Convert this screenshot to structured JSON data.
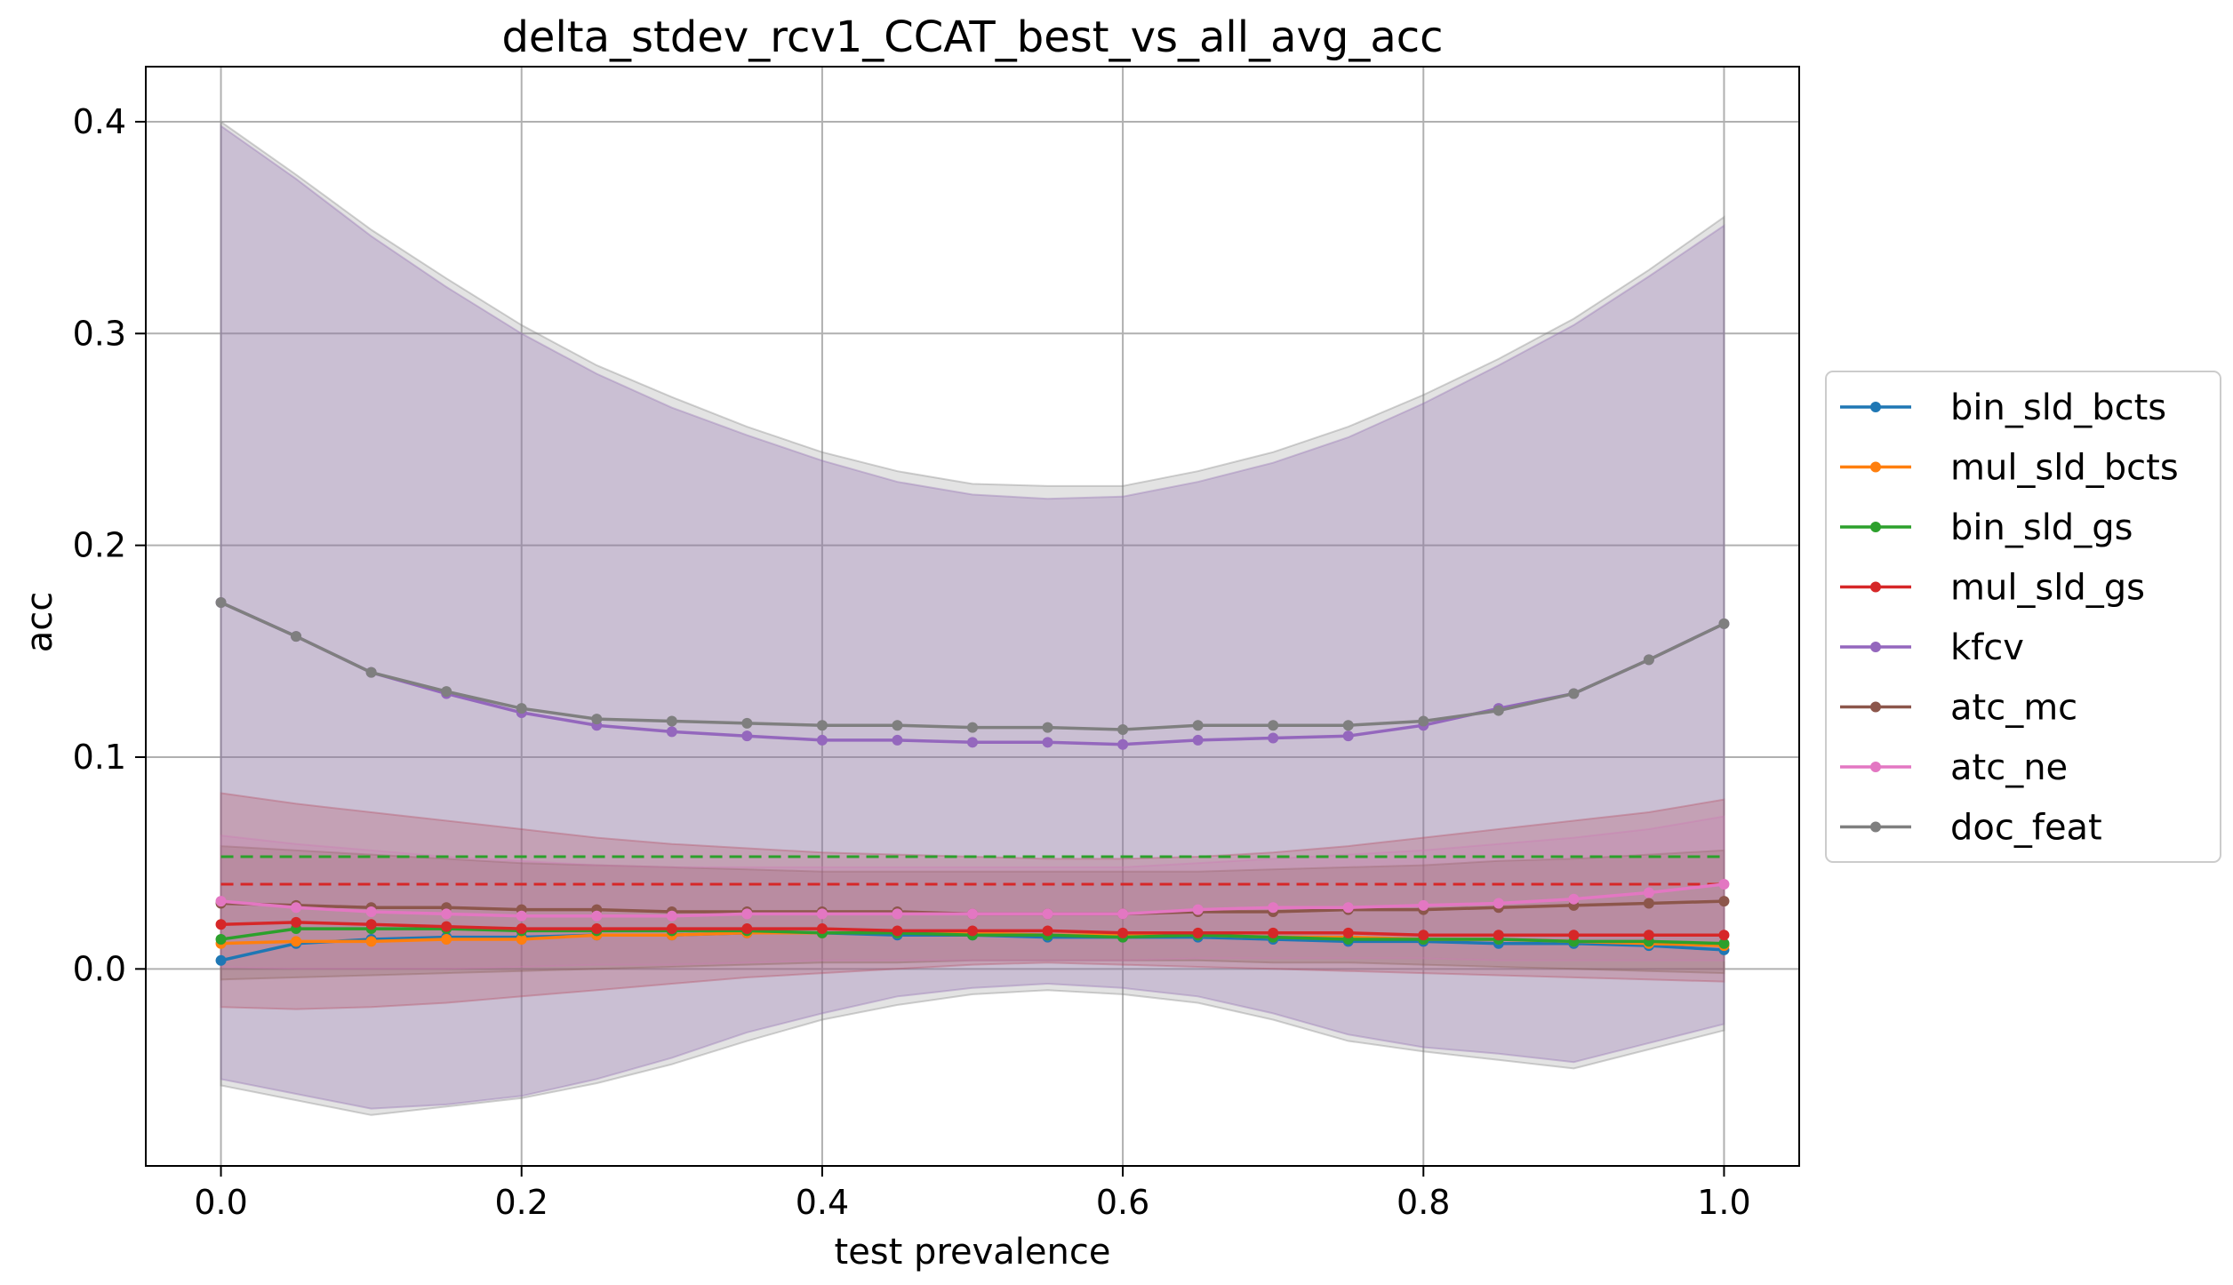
{
  "chart_data": {
    "type": "line",
    "title": "delta_stdev_rcv1_CCAT_best_vs_all_avg_acc",
    "xlabel": "test prevalence",
    "ylabel": "acc",
    "xlim": [
      -0.05,
      1.05
    ],
    "ylim": [
      -0.093,
      0.426
    ],
    "grid": true,
    "legend_position": "right, outside plot",
    "x": [
      0.0,
      0.05,
      0.1,
      0.15,
      0.2,
      0.25,
      0.3,
      0.35,
      0.4,
      0.45,
      0.5,
      0.55,
      0.6,
      0.65,
      0.7,
      0.75,
      0.8,
      0.85,
      0.9,
      0.95,
      1.0
    ],
    "xticks": [
      "0.0",
      "0.2",
      "0.4",
      "0.6",
      "0.8",
      "1.0"
    ],
    "yticks": [
      "0.0",
      "0.1",
      "0.2",
      "0.3",
      "0.4"
    ],
    "series": [
      {
        "name": "bin_sld_bcts",
        "color": "#1f77b4",
        "values": [
          0.004,
          0.012,
          0.014,
          0.015,
          0.015,
          0.016,
          0.016,
          0.017,
          0.017,
          0.016,
          0.016,
          0.015,
          0.015,
          0.015,
          0.014,
          0.013,
          0.013,
          0.012,
          0.012,
          0.011,
          0.009
        ],
        "band": null
      },
      {
        "name": "mul_sld_bcts",
        "color": "#ff7f0e",
        "values": [
          0.012,
          0.013,
          0.013,
          0.014,
          0.014,
          0.016,
          0.016,
          0.017,
          0.017,
          0.017,
          0.017,
          0.016,
          0.016,
          0.016,
          0.015,
          0.015,
          0.014,
          0.014,
          0.013,
          0.012,
          0.011
        ],
        "band": null
      },
      {
        "name": "bin_sld_gs",
        "color": "#2ca02c",
        "values": [
          0.014,
          0.019,
          0.019,
          0.019,
          0.018,
          0.018,
          0.018,
          0.018,
          0.017,
          0.017,
          0.016,
          0.016,
          0.015,
          0.016,
          0.015,
          0.014,
          0.014,
          0.014,
          0.013,
          0.013,
          0.012
        ],
        "band": null,
        "dashed_level": 0.053
      },
      {
        "name": "mul_sld_gs",
        "color": "#d62728",
        "values": [
          0.021,
          0.022,
          0.021,
          0.02,
          0.019,
          0.019,
          0.019,
          0.019,
          0.019,
          0.018,
          0.018,
          0.018,
          0.017,
          0.017,
          0.017,
          0.017,
          0.016,
          0.016,
          0.016,
          0.016,
          0.016
        ],
        "band": {
          "color": "#d62728",
          "opacity": 0.25,
          "upper": [
            0.083,
            0.078,
            0.074,
            0.07,
            0.066,
            0.062,
            0.059,
            0.057,
            0.055,
            0.054,
            0.053,
            0.052,
            0.052,
            0.053,
            0.055,
            0.058,
            0.062,
            0.066,
            0.07,
            0.074,
            0.08
          ],
          "lower": [
            -0.018,
            -0.019,
            -0.018,
            -0.016,
            -0.013,
            -0.01,
            -0.007,
            -0.004,
            -0.002,
            0.0,
            0.002,
            0.003,
            0.002,
            0.001,
            0.0,
            -0.001,
            -0.002,
            -0.003,
            -0.004,
            -0.005,
            -0.006
          ]
        },
        "dashed_level": 0.04
      },
      {
        "name": "kfcv",
        "color": "#9467bd",
        "values": [
          0.173,
          0.157,
          0.14,
          0.13,
          0.121,
          0.115,
          0.112,
          0.11,
          0.108,
          0.108,
          0.107,
          0.107,
          0.106,
          0.108,
          0.109,
          0.11,
          0.115,
          0.123,
          0.13,
          0.146,
          0.163
        ],
        "band": {
          "color": "#9467bd",
          "opacity": 0.3,
          "upper": [
            0.398,
            0.373,
            0.346,
            0.322,
            0.3,
            0.281,
            0.265,
            0.252,
            0.24,
            0.23,
            0.224,
            0.222,
            0.223,
            0.23,
            0.239,
            0.251,
            0.267,
            0.285,
            0.304,
            0.327,
            0.351
          ],
          "lower": [
            -0.052,
            -0.059,
            -0.066,
            -0.064,
            -0.06,
            -0.052,
            -0.042,
            -0.03,
            -0.021,
            -0.013,
            -0.009,
            -0.007,
            -0.009,
            -0.013,
            -0.021,
            -0.031,
            -0.037,
            -0.04,
            -0.044,
            -0.035,
            -0.026
          ]
        }
      },
      {
        "name": "atc_mc",
        "color": "#8c564b",
        "values": [
          0.031,
          0.03,
          0.029,
          0.029,
          0.028,
          0.028,
          0.027,
          0.027,
          0.027,
          0.027,
          0.026,
          0.026,
          0.026,
          0.027,
          0.027,
          0.028,
          0.028,
          0.029,
          0.03,
          0.031,
          0.032
        ],
        "band": {
          "color": "#8c564b",
          "opacity": 0.25,
          "upper": [
            0.058,
            0.056,
            0.054,
            0.052,
            0.05,
            0.049,
            0.048,
            0.047,
            0.046,
            0.046,
            0.046,
            0.046,
            0.046,
            0.046,
            0.047,
            0.048,
            0.049,
            0.051,
            0.052,
            0.054,
            0.056
          ],
          "lower": [
            -0.005,
            -0.004,
            -0.003,
            -0.002,
            -0.001,
            0.0,
            0.001,
            0.002,
            0.003,
            0.003,
            0.004,
            0.004,
            0.004,
            0.004,
            0.003,
            0.003,
            0.002,
            0.001,
            0.0,
            -0.001,
            -0.002
          ]
        }
      },
      {
        "name": "atc_ne",
        "color": "#e377c2",
        "values": [
          0.032,
          0.029,
          0.027,
          0.026,
          0.025,
          0.025,
          0.025,
          0.026,
          0.026,
          0.026,
          0.026,
          0.026,
          0.026,
          0.028,
          0.029,
          0.029,
          0.03,
          0.031,
          0.033,
          0.036,
          0.04
        ],
        "band": {
          "color": "#e377c2",
          "opacity": 0.2,
          "upper": [
            0.063,
            0.059,
            0.056,
            0.053,
            0.051,
            0.049,
            0.048,
            0.048,
            0.048,
            0.048,
            0.048,
            0.048,
            0.048,
            0.05,
            0.052,
            0.054,
            0.056,
            0.059,
            0.062,
            0.066,
            0.072
          ],
          "lower": [
            0.001,
            0.0,
            0.0,
            0.0,
            0.001,
            0.002,
            0.002,
            0.003,
            0.004,
            0.004,
            0.004,
            0.004,
            0.004,
            0.005,
            0.005,
            0.005,
            0.005,
            0.004,
            0.004,
            0.004,
            0.004
          ]
        }
      },
      {
        "name": "doc_feat",
        "color": "#7f7f7f",
        "values": [
          0.173,
          0.157,
          0.14,
          0.131,
          0.123,
          0.118,
          0.117,
          0.116,
          0.115,
          0.115,
          0.114,
          0.114,
          0.113,
          0.115,
          0.115,
          0.115,
          0.117,
          0.122,
          0.13,
          0.146,
          0.163
        ],
        "band": {
          "color": "#7f7f7f",
          "opacity": 0.22,
          "upper": [
            0.4,
            0.375,
            0.349,
            0.326,
            0.304,
            0.285,
            0.27,
            0.256,
            0.244,
            0.235,
            0.229,
            0.228,
            0.228,
            0.235,
            0.244,
            0.256,
            0.271,
            0.288,
            0.307,
            0.33,
            0.355
          ],
          "lower": [
            -0.055,
            -0.062,
            -0.069,
            -0.065,
            -0.061,
            -0.054,
            -0.045,
            -0.034,
            -0.024,
            -0.017,
            -0.012,
            -0.01,
            -0.012,
            -0.016,
            -0.024,
            -0.034,
            -0.039,
            -0.043,
            -0.047,
            -0.038,
            -0.029
          ]
        }
      }
    ]
  }
}
